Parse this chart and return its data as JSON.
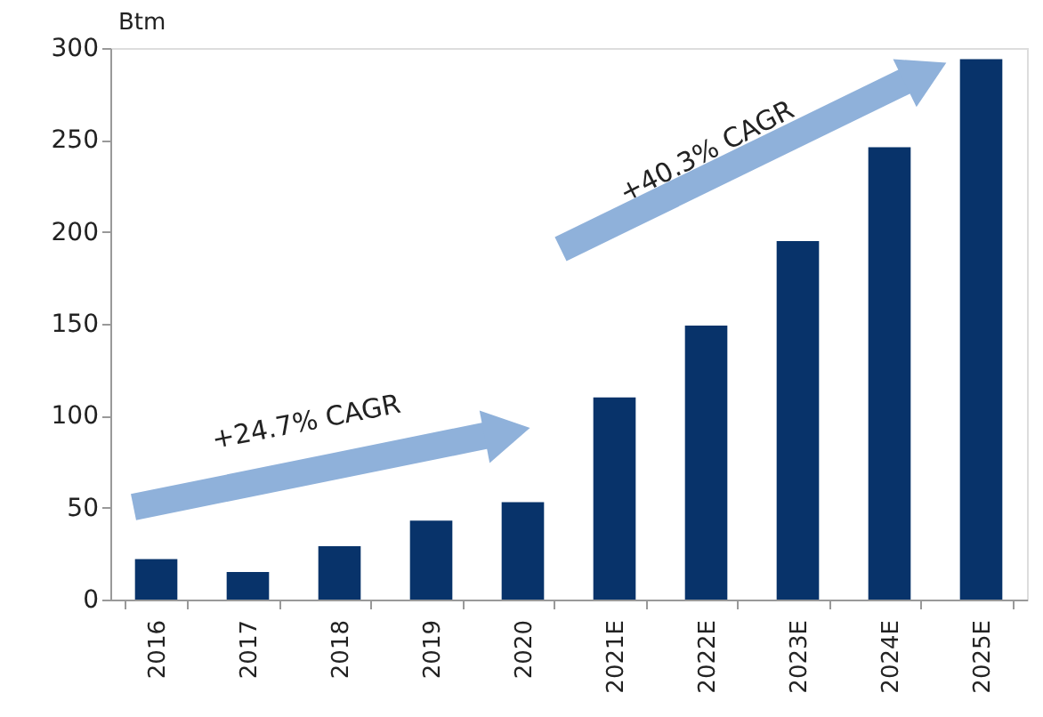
{
  "chart_data": {
    "type": "bar",
    "ylabel": "Btm",
    "categories": [
      "2016",
      "2017",
      "2018",
      "2019",
      "2020",
      "2021E",
      "2022E",
      "2023E",
      "2024E",
      "2025E"
    ],
    "values": [
      22,
      15,
      29,
      43,
      53,
      110,
      149,
      195,
      246,
      294
    ],
    "color": "#08336a",
    "ylim": [
      0,
      300
    ],
    "yticks": [
      0,
      50,
      100,
      150,
      200,
      250,
      300
    ],
    "grid": false,
    "annotations": [
      "+24.7% CAGR",
      "+40.3% CAGR"
    ]
  }
}
